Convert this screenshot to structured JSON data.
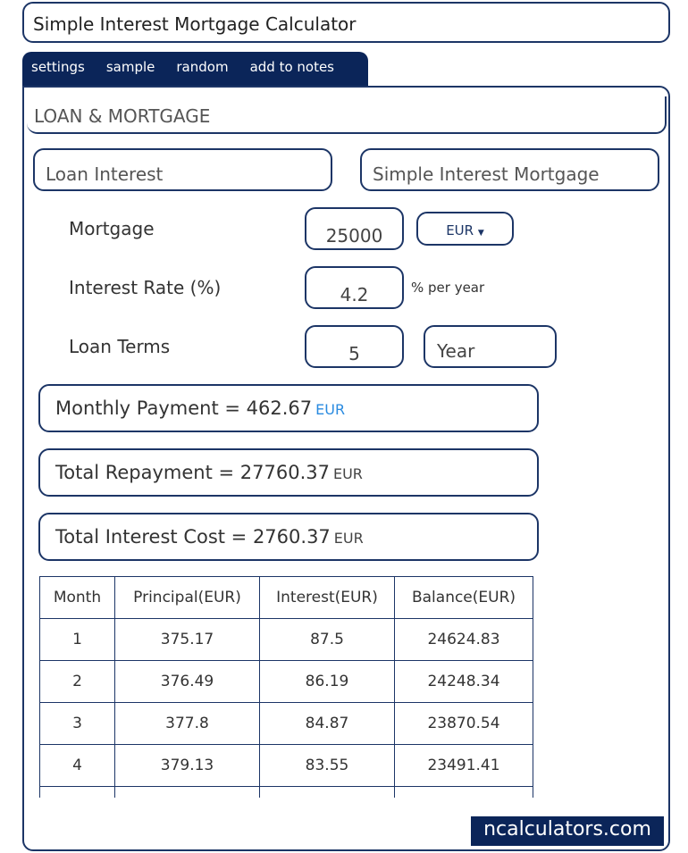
{
  "title": "Simple Interest Mortgage Calculator",
  "tabs": [
    "settings",
    "sample",
    "random",
    "add to notes"
  ],
  "section_title": "LOAN & MORTGAGE",
  "category_select": "Loan Interest",
  "calculator_select": "Simple Interest Mortgage",
  "form": {
    "mortgage_label": "Mortgage",
    "mortgage_value": "25000",
    "currency": "EUR",
    "rate_label": "Interest Rate (%)",
    "rate_value": "4.2",
    "rate_unit": "% per year",
    "terms_label": "Loan Terms",
    "terms_value": "5",
    "terms_unit": "Year"
  },
  "results": [
    {
      "label": "Monthly Payment  =  462.67",
      "unit": "EUR",
      "unit_color": "#2a8be0"
    },
    {
      "label": "Total Repayment  =  27760.37",
      "unit": "EUR"
    },
    {
      "label": "Total Interest Cost  =  2760.37",
      "unit": "EUR"
    }
  ],
  "table": {
    "headers": [
      "Month",
      "Principal(EUR)",
      "Interest(EUR)",
      "Balance(EUR)"
    ],
    "rows": [
      [
        "1",
        "375.17",
        "87.5",
        "24624.83"
      ],
      [
        "2",
        "376.49",
        "86.19",
        "24248.34"
      ],
      [
        "3",
        "377.8",
        "84.87",
        "23870.54"
      ],
      [
        "4",
        "379.13",
        "83.55",
        "23491.41"
      ]
    ]
  },
  "logo": "ncalculators.com",
  "colors": {
    "navy": "#0b2559",
    "border": "#1c3566"
  }
}
